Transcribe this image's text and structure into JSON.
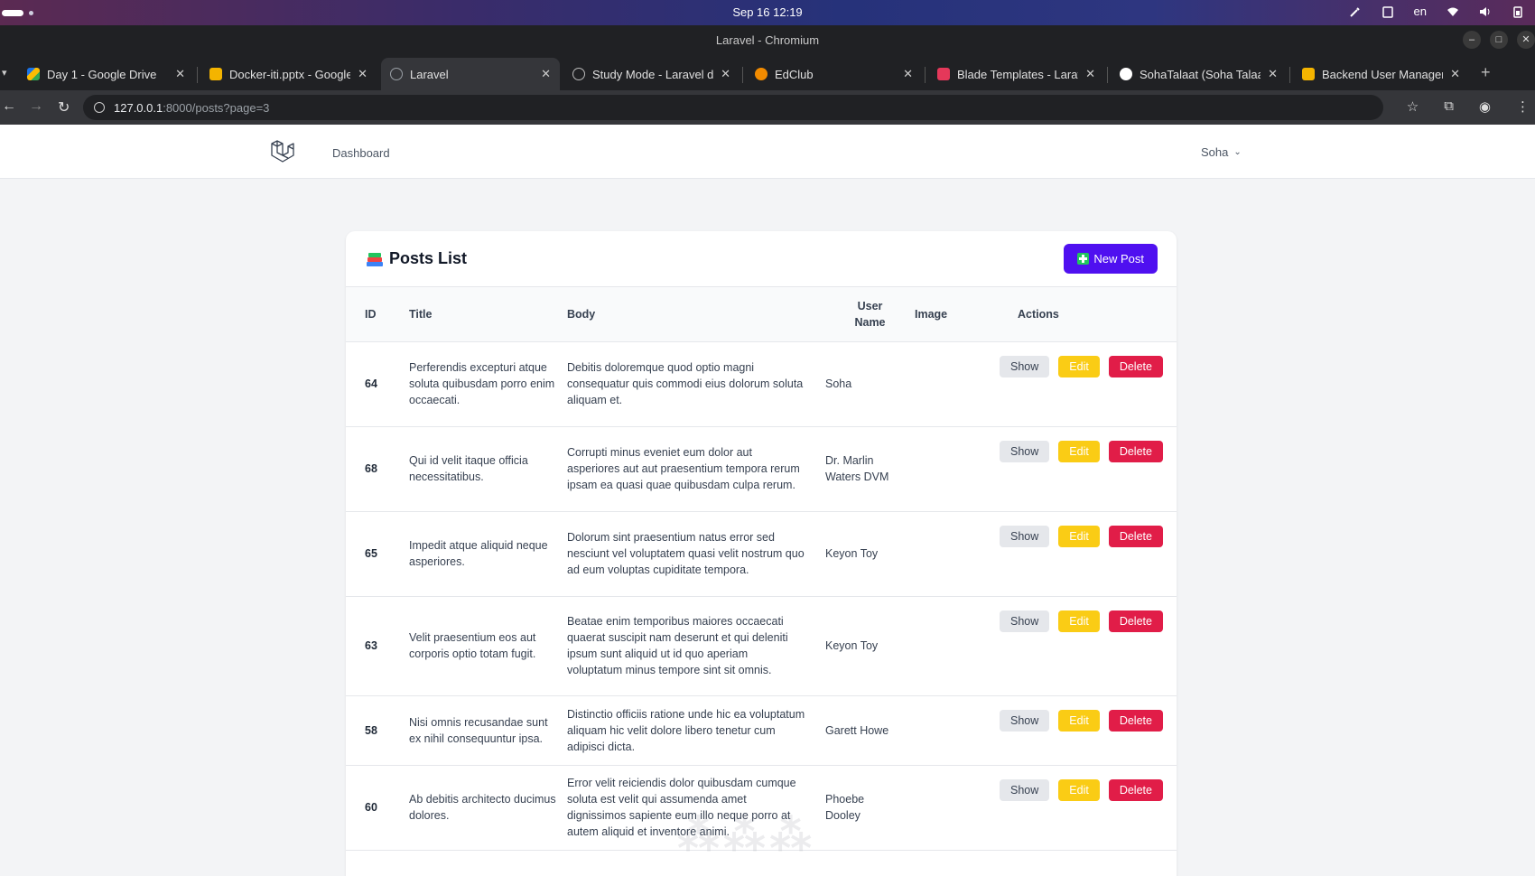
{
  "os": {
    "datetime": "Sep 16  12:19",
    "lang": "en"
  },
  "window": {
    "title": "Laravel - Chromium"
  },
  "tabs": [
    {
      "label": "Day 1 - Google Drive",
      "color": "#fbbc04"
    },
    {
      "label": "Docker-iti.pptx - Google Slides",
      "color": "#f4b400"
    },
    {
      "label": "Laravel",
      "color": "#9aa0a6"
    },
    {
      "label": "Study Mode - Laravel docs",
      "color": "#9aa0a6"
    },
    {
      "label": "EdClub",
      "color": "#f28b00"
    },
    {
      "label": "Blade Templates - Laravel",
      "color": "#e5385a"
    },
    {
      "label": "SohaTalaat (Soha Talaat)",
      "color": "#ffffff"
    },
    {
      "label": "Backend User Management",
      "color": "#f4b400"
    }
  ],
  "address": {
    "host": "127.0.0.1",
    "rest": ":8000/posts?page=3"
  },
  "header": {
    "nav_dashboard": "Dashboard",
    "user": "Soha"
  },
  "card": {
    "title": "Posts List",
    "new_button": "New Post"
  },
  "table": {
    "headers": {
      "id": "ID",
      "title": "Title",
      "body": "Body",
      "user_line1": "User",
      "user_line2": "Name",
      "image": "Image",
      "actions": "Actions"
    },
    "actions": {
      "show": "Show",
      "edit": "Edit",
      "delete": "Delete"
    },
    "rows": [
      {
        "id": "64",
        "title": "Perferendis excepturi atque soluta quibusdam porro enim occaecati.",
        "body": "Debitis doloremque quod optio magni consequatur quis commodi eius dolorum soluta aliquam et.",
        "user": "Soha"
      },
      {
        "id": "68",
        "title": "Qui id velit itaque officia necessitatibus.",
        "body": "Corrupti minus eveniet eum dolor aut asperiores aut aut praesentium tempora rerum ipsam ea quasi quae quibusdam culpa rerum.",
        "user": "Dr. Marlin Waters DVM"
      },
      {
        "id": "65",
        "title": "Impedit atque aliquid neque asperiores.",
        "body": "Dolorum sint praesentium natus error sed nesciunt vel voluptatem quasi velit nostrum quo ad eum voluptas cupiditate tempora.",
        "user": "Keyon Toy"
      },
      {
        "id": "63",
        "title": "Velit praesentium eos aut corporis optio totam fugit.",
        "body": "Beatae enim temporibus maiores occaecati quaerat suscipit nam deserunt et qui deleniti ipsum sunt aliquid ut id quo aperiam voluptatum minus tempore sint sit omnis.",
        "user": "Keyon Toy"
      },
      {
        "id": "58",
        "title": "Nisi omnis recusandae sunt ex nihil consequuntur ipsa.",
        "body": "Distinctio officiis ratione unde hic ea voluptatum aliquam hic velit dolore libero tenetur cum adipisci dicta.",
        "user": "Garett Howe"
      },
      {
        "id": "60",
        "title": "Ab debitis architecto ducimus dolores.",
        "body": "Error velit reiciendis dolor quibusdam cumque soluta est velit qui assumenda amet dignissimos sapiente eum illo neque porro at autem aliquid et inventore animi.",
        "user": "Phoebe Dooley"
      }
    ]
  }
}
